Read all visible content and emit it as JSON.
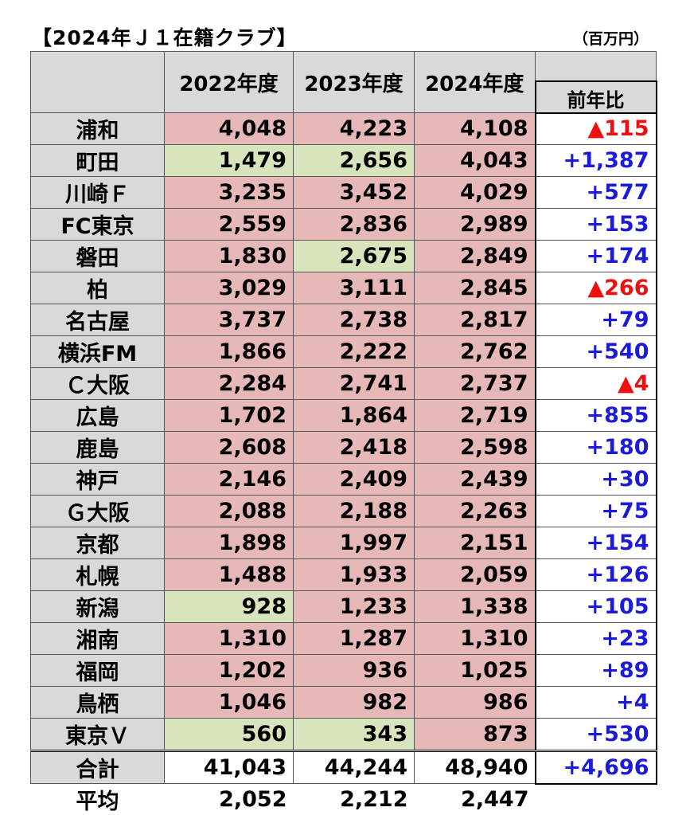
{
  "title": "【2024年Ｊ１在籍クラブ】",
  "unit": "（百万円）",
  "headers": {
    "y2022": "2022年度",
    "y2023": "2023年度",
    "y2024": "2024年度",
    "diff": "前年比"
  },
  "colors": {
    "header_bg": "#d9d9d9",
    "red_cell": "#e6b8b7",
    "green_cell": "#d8e4bc",
    "increase_text": "#1c1cd6",
    "decrease_text": "#ee1010"
  },
  "rows": [
    {
      "club": "浦和",
      "y2022": "4,048",
      "y2023": "4,223",
      "y2024": "4,108",
      "diff": "▲115",
      "dir": "down",
      "c2022": "red",
      "c2023": "red",
      "c2024": "red"
    },
    {
      "club": "町田",
      "y2022": "1,479",
      "y2023": "2,656",
      "y2024": "4,043",
      "diff": "+1,387",
      "dir": "up",
      "c2022": "green",
      "c2023": "green",
      "c2024": "red"
    },
    {
      "club": "川崎Ｆ",
      "y2022": "3,235",
      "y2023": "3,452",
      "y2024": "4,029",
      "diff": "+577",
      "dir": "up",
      "c2022": "red",
      "c2023": "red",
      "c2024": "red"
    },
    {
      "club": "FC東京",
      "y2022": "2,559",
      "y2023": "2,836",
      "y2024": "2,989",
      "diff": "+153",
      "dir": "up",
      "c2022": "red",
      "c2023": "red",
      "c2024": "red"
    },
    {
      "club": "磐田",
      "y2022": "1,830",
      "y2023": "2,675",
      "y2024": "2,849",
      "diff": "+174",
      "dir": "up",
      "c2022": "red",
      "c2023": "green",
      "c2024": "red"
    },
    {
      "club": "柏",
      "y2022": "3,029",
      "y2023": "3,111",
      "y2024": "2,845",
      "diff": "▲266",
      "dir": "down",
      "c2022": "red",
      "c2023": "red",
      "c2024": "red"
    },
    {
      "club": "名古屋",
      "y2022": "3,737",
      "y2023": "2,738",
      "y2024": "2,817",
      "diff": "+79",
      "dir": "up",
      "c2022": "red",
      "c2023": "red",
      "c2024": "red"
    },
    {
      "club": "横浜FM",
      "y2022": "1,866",
      "y2023": "2,222",
      "y2024": "2,762",
      "diff": "+540",
      "dir": "up",
      "c2022": "red",
      "c2023": "red",
      "c2024": "red"
    },
    {
      "club": "Ｃ大阪",
      "y2022": "2,284",
      "y2023": "2,741",
      "y2024": "2,737",
      "diff": "▲4",
      "dir": "down",
      "c2022": "red",
      "c2023": "red",
      "c2024": "red"
    },
    {
      "club": "広島",
      "y2022": "1,702",
      "y2023": "1,864",
      "y2024": "2,719",
      "diff": "+855",
      "dir": "up",
      "c2022": "red",
      "c2023": "red",
      "c2024": "red"
    },
    {
      "club": "鹿島",
      "y2022": "2,608",
      "y2023": "2,418",
      "y2024": "2,598",
      "diff": "+180",
      "dir": "up",
      "c2022": "red",
      "c2023": "red",
      "c2024": "red"
    },
    {
      "club": "神戸",
      "y2022": "2,146",
      "y2023": "2,409",
      "y2024": "2,439",
      "diff": "+30",
      "dir": "up",
      "c2022": "red",
      "c2023": "red",
      "c2024": "red"
    },
    {
      "club": "Ｇ大阪",
      "y2022": "2,088",
      "y2023": "2,188",
      "y2024": "2,263",
      "diff": "+75",
      "dir": "up",
      "c2022": "red",
      "c2023": "red",
      "c2024": "red"
    },
    {
      "club": "京都",
      "y2022": "1,898",
      "y2023": "1,997",
      "y2024": "2,151",
      "diff": "+154",
      "dir": "up",
      "c2022": "red",
      "c2023": "red",
      "c2024": "red"
    },
    {
      "club": "札幌",
      "y2022": "1,488",
      "y2023": "1,933",
      "y2024": "2,059",
      "diff": "+126",
      "dir": "up",
      "c2022": "red",
      "c2023": "red",
      "c2024": "red"
    },
    {
      "club": "新潟",
      "y2022": "928",
      "y2023": "1,233",
      "y2024": "1,338",
      "diff": "+105",
      "dir": "up",
      "c2022": "green",
      "c2023": "red",
      "c2024": "red"
    },
    {
      "club": "湘南",
      "y2022": "1,310",
      "y2023": "1,287",
      "y2024": "1,310",
      "diff": "+23",
      "dir": "up",
      "c2022": "red",
      "c2023": "red",
      "c2024": "red"
    },
    {
      "club": "福岡",
      "y2022": "1,202",
      "y2023": "936",
      "y2024": "1,025",
      "diff": "+89",
      "dir": "up",
      "c2022": "red",
      "c2023": "red",
      "c2024": "red"
    },
    {
      "club": "鳥栖",
      "y2022": "1,046",
      "y2023": "982",
      "y2024": "986",
      "diff": "+4",
      "dir": "up",
      "c2022": "red",
      "c2023": "red",
      "c2024": "red"
    },
    {
      "club": "東京Ｖ",
      "y2022": "560",
      "y2023": "343",
      "y2024": "873",
      "diff": "+530",
      "dir": "up",
      "c2022": "green",
      "c2023": "green",
      "c2024": "red"
    }
  ],
  "total": {
    "label": "合計",
    "y2022": "41,043",
    "y2023": "44,244",
    "y2024": "48,940",
    "diff": "+4,696"
  },
  "average": {
    "label": "平均",
    "y2022": "2,052",
    "y2023": "2,212",
    "y2024": "2,447"
  }
}
